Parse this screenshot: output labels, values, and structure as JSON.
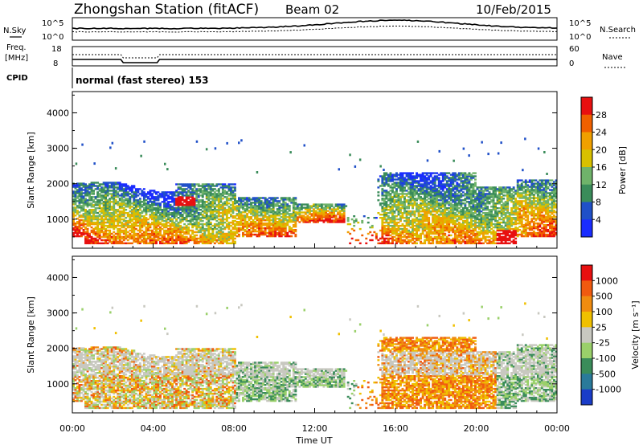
{
  "header": {
    "station": "Zhongshan Station (fitACF)",
    "beam": "Beam 02",
    "date": "10/Feb/2015"
  },
  "noise_panel": {
    "left_label": "N.Sky",
    "right_label": "N.Search",
    "left_ticks": [
      "10^5",
      "10^0"
    ],
    "right_ticks": [
      "10^5",
      "10^0"
    ]
  },
  "freq_panel": {
    "left_label_1": "Freq.",
    "left_label_2": "[MHz]",
    "left_ticks": [
      "18",
      "8"
    ],
    "right_label": "Nave",
    "right_ticks": [
      "60",
      "0"
    ]
  },
  "cpid": {
    "label": "CPID",
    "text": "normal (fast stereo) 153"
  },
  "chart_data": [
    {
      "type": "heatmap",
      "name": "power",
      "ylabel": "Slant Range [km]",
      "ylim": [
        180,
        4600
      ],
      "yticks": [
        "1000",
        "2000",
        "3000",
        "4000"
      ],
      "xlim_hours": [
        0,
        24
      ],
      "colorbar": {
        "label": "Power [dB]",
        "ticks": [
          "4",
          "8",
          "12",
          "16",
          "20",
          "24",
          "28"
        ],
        "colors": [
          "#1a2cff",
          "#2050c8",
          "#3a8c5a",
          "#6fb36a",
          "#d8c000",
          "#f0a000",
          "#f06000",
          "#e81010"
        ]
      }
    },
    {
      "type": "heatmap",
      "name": "velocity",
      "ylabel": "Slant Range [km]",
      "ylim": [
        180,
        4600
      ],
      "yticks": [
        "1000",
        "2000",
        "3000",
        "4000"
      ],
      "xlim_hours": [
        0,
        24
      ],
      "xlabel": "Time UT",
      "xticks": [
        "00:00",
        "04:00",
        "08:00",
        "12:00",
        "16:00",
        "20:00",
        "00:00"
      ],
      "colorbar": {
        "label": "Velocity [m s⁻¹]",
        "ticks": [
          "1000",
          "500",
          "100",
          "25",
          "-25",
          "-100",
          "-500",
          "-1000"
        ],
        "colors": [
          "#1a3cc8",
          "#2a7a9a",
          "#3a8c5a",
          "#9ad06a",
          "#c8c8c0",
          "#f0c000",
          "#f08c10",
          "#f05a10",
          "#e81010"
        ]
      }
    }
  ]
}
